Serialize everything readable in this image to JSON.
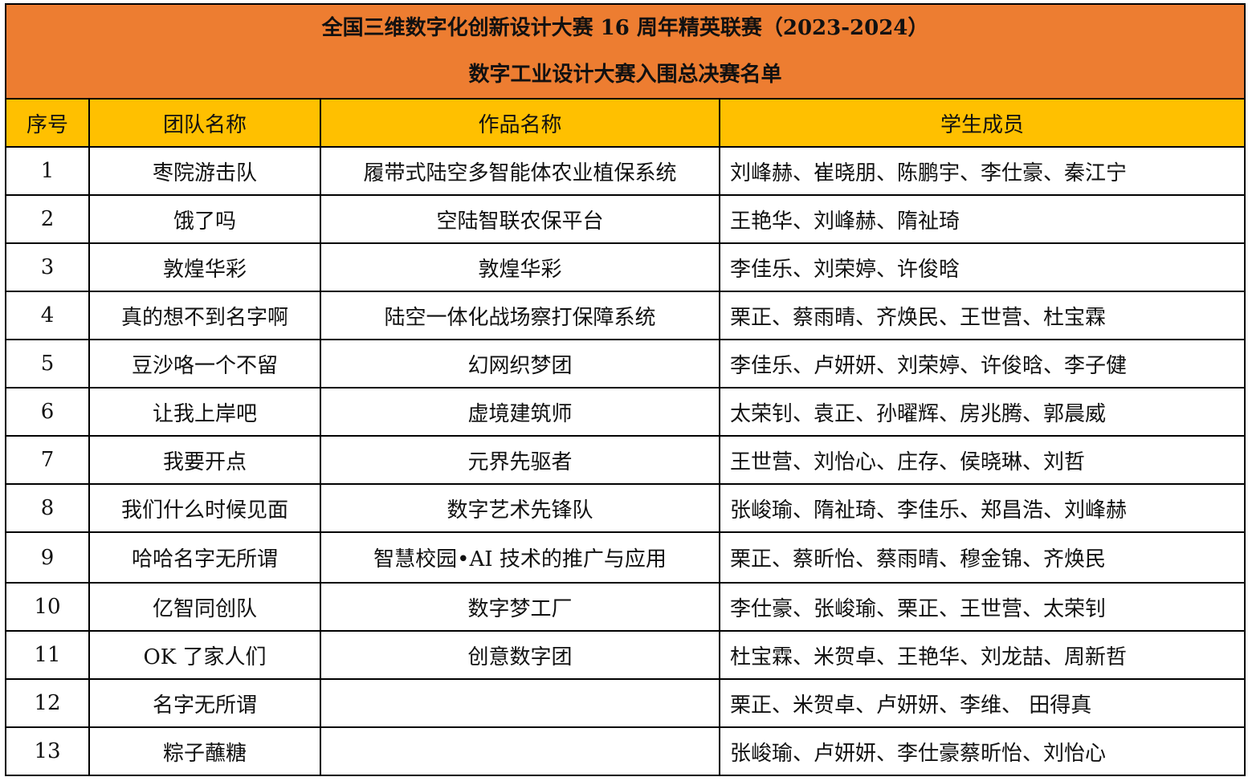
{
  "title": {
    "line1": "全国三维数字化创新设计大赛 16 周年精英联赛（2023-2024）",
    "line2": "数字工业设计大赛入围总决赛名单"
  },
  "colors": {
    "title_bg": "#ED7D31",
    "header_bg": "#FFC000"
  },
  "columns": [
    "序号",
    "团队名称",
    "作品名称",
    "学生成员"
  ],
  "rows": [
    {
      "no": "1",
      "team": "枣院游击队",
      "work": "履带式陆空多智能体农业植保系统",
      "members": "刘峰赫、崔晓朋、陈鹏宇、李仕豪、秦江宁"
    },
    {
      "no": "2",
      "team": "饿了吗",
      "work": "空陆智联农保平台",
      "members": "王艳华、刘峰赫、隋祉琦"
    },
    {
      "no": "3",
      "team": "敦煌华彩",
      "work": "敦煌华彩",
      "members": "李佳乐、刘荣婷、许俊晗"
    },
    {
      "no": "4",
      "team": "真的想不到名字啊",
      "work": "陆空一体化战场察打保障系统",
      "members": "栗正、蔡雨晴、齐焕民、王世营、杜宝霖"
    },
    {
      "no": "5",
      "team": "豆沙咯一个不留",
      "work": "幻网织梦团",
      "members": "李佳乐、卢妍妍、刘荣婷、许俊晗、李子健"
    },
    {
      "no": "6",
      "team": "让我上岸吧",
      "work": "虚境建筑师",
      "members": "太荣钊、袁正、孙曜辉、房兆腾、郭晨威"
    },
    {
      "no": "7",
      "team": "我要开点",
      "work": "元界先驱者",
      "members": "王世营、刘怡心、庄存、侯晓琳、刘哲"
    },
    {
      "no": "8",
      "team": "我们什么时候见面",
      "work": "数字艺术先锋队",
      "members": "张峻瑜、隋祉琦、李佳乐、郑昌浩、刘峰赫"
    },
    {
      "no": "9",
      "team": "哈哈名字无所谓",
      "work": "智慧校园•AI 技术的推广与应用",
      "members": "栗正、蔡昕怡、蔡雨晴、穆金锦、齐焕民"
    },
    {
      "no": "10",
      "team": "亿智同创队",
      "work": "数字梦工厂",
      "members": "李仕豪、张峻瑜、栗正、王世营、太荣钊"
    },
    {
      "no": "11",
      "team": "OK 了家人们",
      "work": "创意数字团",
      "members": "杜宝霖、米贺卓、王艳华、刘龙喆、周新哲"
    },
    {
      "no": "12",
      "team": "名字无所谓",
      "work": "",
      "members": "栗正、米贺卓、卢妍妍、李维、  田得真"
    },
    {
      "no": "13",
      "team": "粽子蘸糖",
      "work": "",
      "members": "张峻瑜、卢妍妍、李仕豪蔡昕怡、刘怡心"
    }
  ]
}
